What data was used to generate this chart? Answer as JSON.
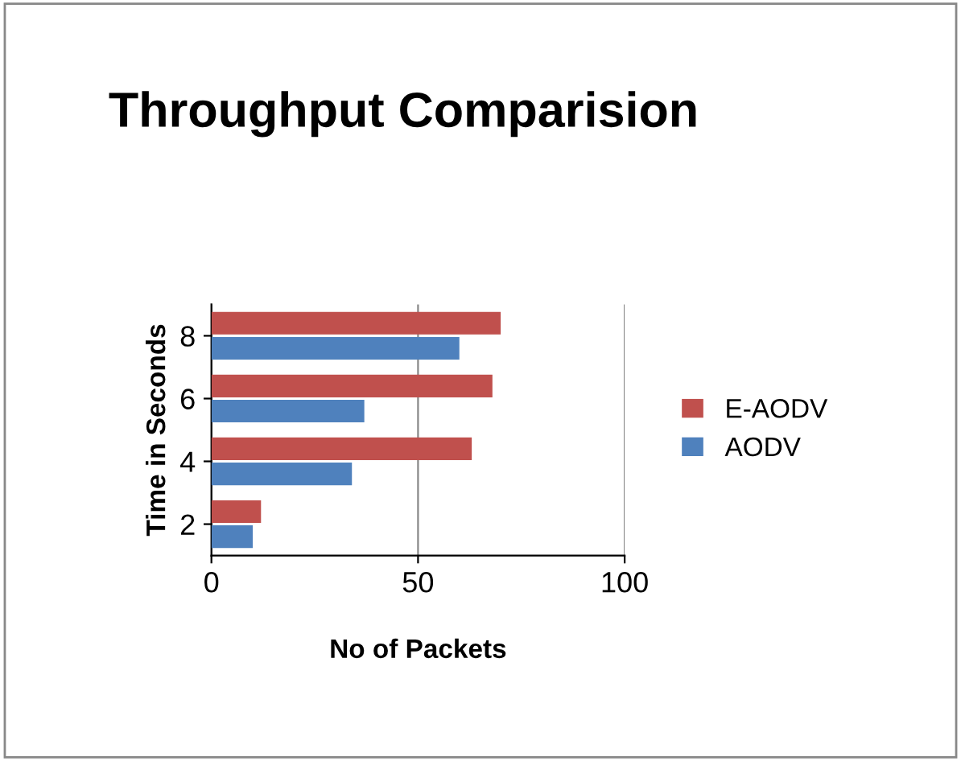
{
  "chart_data": {
    "type": "bar",
    "orientation": "horizontal",
    "title": "Throughput Comparision",
    "xlabel": "No of Packets",
    "ylabel": "Time in Seconds",
    "categories": [
      "8",
      "6",
      "4",
      "2"
    ],
    "series": [
      {
        "name": "AODV",
        "color": "#4f81bd",
        "values": [
          60,
          37,
          34,
          10
        ]
      },
      {
        "name": "E-AODV",
        "color": "#c0504d",
        "values": [
          70,
          68,
          63,
          12
        ]
      }
    ],
    "xlim": [
      0,
      100
    ],
    "xticks": [
      0,
      50,
      100
    ],
    "grid": "x",
    "legend": "right"
  }
}
